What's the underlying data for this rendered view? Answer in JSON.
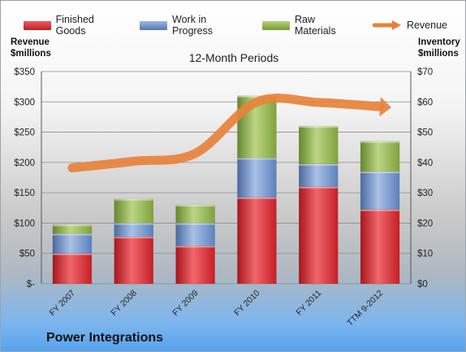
{
  "chart_data": {
    "type": "bar",
    "subtype": "stacked-bar-with-line",
    "title": "12-Month Periods",
    "company": "Power Integrations",
    "categories": [
      "FY 2007",
      "FY 2008",
      "FY 2009",
      "FY 2010",
      "FY 2011",
      "TTM 9-2012"
    ],
    "left_axis": {
      "label_line1": "Revenue",
      "label_line2": "$millions",
      "ylim": [
        0,
        350
      ],
      "ticks": [
        "$-",
        "$50",
        "$100",
        "$150",
        "$200",
        "$250",
        "$300",
        "$350"
      ]
    },
    "right_axis": {
      "label_line1": "Inventory",
      "label_line2": "$millions",
      "ylim": [
        0,
        70
      ],
      "ticks": [
        "$0",
        "$10",
        "$20",
        "$30",
        "$40",
        "$50",
        "$60",
        "$70"
      ]
    },
    "series": [
      {
        "name": "Finished Goods",
        "axis": "right",
        "color": "#d2242a",
        "values": [
          10,
          15.5,
          12.5,
          28.5,
          32,
          24.5
        ]
      },
      {
        "name": "Work in Progress",
        "axis": "right",
        "color": "#6a8fc7",
        "values": [
          6.5,
          4.5,
          7.5,
          13,
          7.5,
          12.5
        ]
      },
      {
        "name": "Raw Materials",
        "axis": "right",
        "color": "#8eb049",
        "values": [
          3,
          8,
          6,
          20.5,
          12.5,
          10
        ]
      },
      {
        "name": "Revenue",
        "axis": "left",
        "type": "line",
        "color": "#e8823a",
        "values": [
          191,
          202,
          215,
          300,
          299,
          292
        ]
      }
    ],
    "legend_position": "top",
    "grid": true
  }
}
